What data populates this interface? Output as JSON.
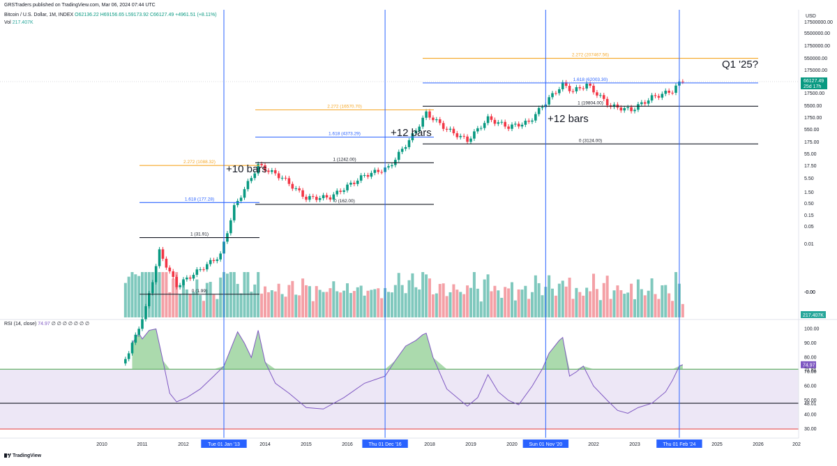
{
  "header": {
    "publisher": "GRSTraders published on TradingView.com, Mar 06, 2024 07:44 UTC",
    "symbol": "Bitcoin / U.S. Dollar, 1M, INDEX",
    "ohlc": "O62136.22 H69156.65 L59173.92 C66127.49 +4961.51 (+8.11%)",
    "vol_label": "Vol",
    "vol_value": "217.407K"
  },
  "currency": "USD",
  "brand": "TradingView",
  "colors": {
    "up": "#089981",
    "down": "#f23645",
    "vol_up": "#7fc8bd",
    "vol_down": "#f4a0a6",
    "fib_orange": "#f5a623",
    "fib_blue": "#2962ff",
    "vline": "#2962ff",
    "rsi_line": "#7e57c2",
    "rsi_green": "#4caf50",
    "rsi_fill": "#ede7f6",
    "rsi_upper_band": "#43a047",
    "rsi_lower_band": "#e53935"
  },
  "chart_data": [
    {
      "type": "candlestick",
      "title": "Bitcoin / U.S. Dollar, 1M, INDEX",
      "y_scale": "log",
      "y_ticks": [
        "17500000.00",
        "5500000.00",
        "1750000.00",
        "550000.00",
        "175000.00",
        "17500.00",
        "5500.00",
        "1750.00",
        "550.00",
        "175.00",
        "55.00",
        "17.50",
        "5.50",
        "1.50",
        "0.50",
        "0.15",
        "0.05",
        "0.01",
        "-0.00"
      ],
      "last_price": "66127.49",
      "last_price_countdown": "25d 17h",
      "candles_approx_close": [
        {
          "x": "2010-07",
          "y": 0.06
        },
        {
          "x": "2010-11",
          "y": 0.25
        },
        {
          "x": "2011-02",
          "y": 1.0
        },
        {
          "x": "2011-06",
          "y": 16
        },
        {
          "x": "2011-11",
          "y": 3
        },
        {
          "x": "2012-06",
          "y": 6.7
        },
        {
          "x": "2012-12",
          "y": 13.5
        },
        {
          "x": "2013-04",
          "y": 140
        },
        {
          "x": "2013-11",
          "y": 1100
        },
        {
          "x": "2014-06",
          "y": 600
        },
        {
          "x": "2015-01",
          "y": 220
        },
        {
          "x": "2015-08",
          "y": 230
        },
        {
          "x": "2016-06",
          "y": 670
        },
        {
          "x": "2017-01",
          "y": 970
        },
        {
          "x": "2017-08",
          "y": 4700
        },
        {
          "x": "2017-12",
          "y": 14000
        },
        {
          "x": "2018-06",
          "y": 6400
        },
        {
          "x": "2018-12",
          "y": 3700
        },
        {
          "x": "2019-06",
          "y": 10800
        },
        {
          "x": "2019-12",
          "y": 7200
        },
        {
          "x": "2020-06",
          "y": 9100
        },
        {
          "x": "2020-12",
          "y": 29000
        },
        {
          "x": "2021-04",
          "y": 57700
        },
        {
          "x": "2021-07",
          "y": 41500
        },
        {
          "x": "2021-11",
          "y": 57000
        },
        {
          "x": "2022-06",
          "y": 19800
        },
        {
          "x": "2022-12",
          "y": 16500
        },
        {
          "x": "2023-06",
          "y": 30400
        },
        {
          "x": "2023-12",
          "y": 42300
        },
        {
          "x": "2024-02",
          "y": 61000
        },
        {
          "x": "2024-03",
          "y": 66127.49
        }
      ],
      "fib_sets": [
        {
          "levels": [
            {
              "ratio": "0",
              "value": "1.99",
              "label": "0 (1.99)"
            },
            {
              "ratio": "1",
              "value": "31.91",
              "label": "1 (31.91)"
            },
            {
              "ratio": "1.618",
              "value": "177.28",
              "label": "1.618 (177.28)"
            },
            {
              "ratio": "2.272",
              "value": "1088.32",
              "label": "2.272 (1088.32)"
            }
          ]
        },
        {
          "levels": [
            {
              "ratio": "0",
              "value": "162.00",
              "label": "0 (162.00)"
            },
            {
              "ratio": "1",
              "value": "1242.00",
              "label": "1 (1242.00)"
            },
            {
              "ratio": "1.618",
              "value": "4373.29",
              "label": "1.618 (4373.29)"
            },
            {
              "ratio": "2.272",
              "value": "16570.70",
              "label": "2.272 (16570.70)"
            }
          ]
        },
        {
          "levels": [
            {
              "ratio": "0",
              "value": "3124.00",
              "label": "0 (3124.00)"
            },
            {
              "ratio": "1",
              "value": "19804.00",
              "label": "1 (19804.00)"
            },
            {
              "ratio": "1.618",
              "value": "62003.30",
              "label": "1.618 (62003.30)"
            },
            {
              "ratio": "2.272",
              "value": "207467.56",
              "label": "2.272 (207467.56)"
            }
          ]
        }
      ],
      "annotations": [
        "+10 bars",
        "+12 bars",
        "+12 bars",
        "Q1 '25?"
      ],
      "vertical_markers": [
        "Tue 01 Jan '13",
        "Thu 01 Dec '16",
        "Sun 01 Nov '20",
        "Thu 01 Feb '24"
      ]
    },
    {
      "type": "bar",
      "title": "Vol",
      "last_value": "217.407K",
      "y_ticks": [
        "-0.00"
      ]
    },
    {
      "type": "line",
      "title": "RSI (14, close)",
      "header_value": "74.97",
      "header_dots": "∅ ∅ ∅ ∅ ∅ ∅ ∅",
      "y_ticks": [
        "100.00",
        "90.00",
        "80.00",
        "70.00",
        "60.00",
        "50.00",
        "40.00",
        "30.00"
      ],
      "bands": {
        "upper": 71.81,
        "middle": 48.01,
        "lower": 30.0
      },
      "band_labels": {
        "upper": "71.81",
        "middle": "48.01"
      },
      "last_value": "74.97",
      "ylim": [
        28,
        104
      ],
      "series": [
        {
          "values": [
            {
              "x": "2010-10",
              "y": 90
            },
            {
              "x": "2010-12",
              "y": 97
            },
            {
              "x": "2011-01",
              "y": 93
            },
            {
              "x": "2011-03",
              "y": 99
            },
            {
              "x": "2011-05",
              "y": 100
            },
            {
              "x": "2011-07",
              "y": 78
            },
            {
              "x": "2011-09",
              "y": 55
            },
            {
              "x": "2011-11",
              "y": 49
            },
            {
              "x": "2012-02",
              "y": 52
            },
            {
              "x": "2012-06",
              "y": 58
            },
            {
              "x": "2012-10",
              "y": 67
            },
            {
              "x": "2013-01",
              "y": 74
            },
            {
              "x": "2013-03",
              "y": 86
            },
            {
              "x": "2013-05",
              "y": 98
            },
            {
              "x": "2013-07",
              "y": 90
            },
            {
              "x": "2013-09",
              "y": 80
            },
            {
              "x": "2013-11",
              "y": 99
            },
            {
              "x": "2014-01",
              "y": 77
            },
            {
              "x": "2014-04",
              "y": 62
            },
            {
              "x": "2014-08",
              "y": 55
            },
            {
              "x": "2015-01",
              "y": 45
            },
            {
              "x": "2015-06",
              "y": 44
            },
            {
              "x": "2015-12",
              "y": 52
            },
            {
              "x": "2016-06",
              "y": 62
            },
            {
              "x": "2016-12",
              "y": 67
            },
            {
              "x": "2017-03",
              "y": 78
            },
            {
              "x": "2017-06",
              "y": 88
            },
            {
              "x": "2017-09",
              "y": 92
            },
            {
              "x": "2017-11",
              "y": 96
            },
            {
              "x": "2017-12",
              "y": 97
            },
            {
              "x": "2018-02",
              "y": 80
            },
            {
              "x": "2018-06",
              "y": 58
            },
            {
              "x": "2018-12",
              "y": 46
            },
            {
              "x": "2019-03",
              "y": 52
            },
            {
              "x": "2019-06",
              "y": 68
            },
            {
              "x": "2019-09",
              "y": 56
            },
            {
              "x": "2019-12",
              "y": 50
            },
            {
              "x": "2020-03",
              "y": 47
            },
            {
              "x": "2020-07",
              "y": 60
            },
            {
              "x": "2020-10",
              "y": 72
            },
            {
              "x": "2020-12",
              "y": 83
            },
            {
              "x": "2021-03",
              "y": 92
            },
            {
              "x": "2021-04",
              "y": 94
            },
            {
              "x": "2021-06",
              "y": 67
            },
            {
              "x": "2021-08",
              "y": 70
            },
            {
              "x": "2021-10",
              "y": 74
            },
            {
              "x": "2022-01",
              "y": 60
            },
            {
              "x": "2022-05",
              "y": 50
            },
            {
              "x": "2022-08",
              "y": 43
            },
            {
              "x": "2022-11",
              "y": 41
            },
            {
              "x": "2023-02",
              "y": 45
            },
            {
              "x": "2023-06",
              "y": 48
            },
            {
              "x": "2023-10",
              "y": 56
            },
            {
              "x": "2023-12",
              "y": 64
            },
            {
              "x": "2024-02",
              "y": 74
            },
            {
              "x": "2024-03",
              "y": 75
            }
          ]
        }
      ]
    }
  ],
  "x_axis": {
    "labels": [
      "2010",
      "2011",
      "2012",
      "2014",
      "2015",
      "2016",
      "2018",
      "2019",
      "2020",
      "2022",
      "2023",
      "2025",
      "2026",
      "202"
    ],
    "highlight_labels": [
      "Tue 01 Jan '13",
      "Thu 01 Dec '16",
      "Sun 01 Nov '20",
      "Thu 01 Feb '24"
    ]
  }
}
